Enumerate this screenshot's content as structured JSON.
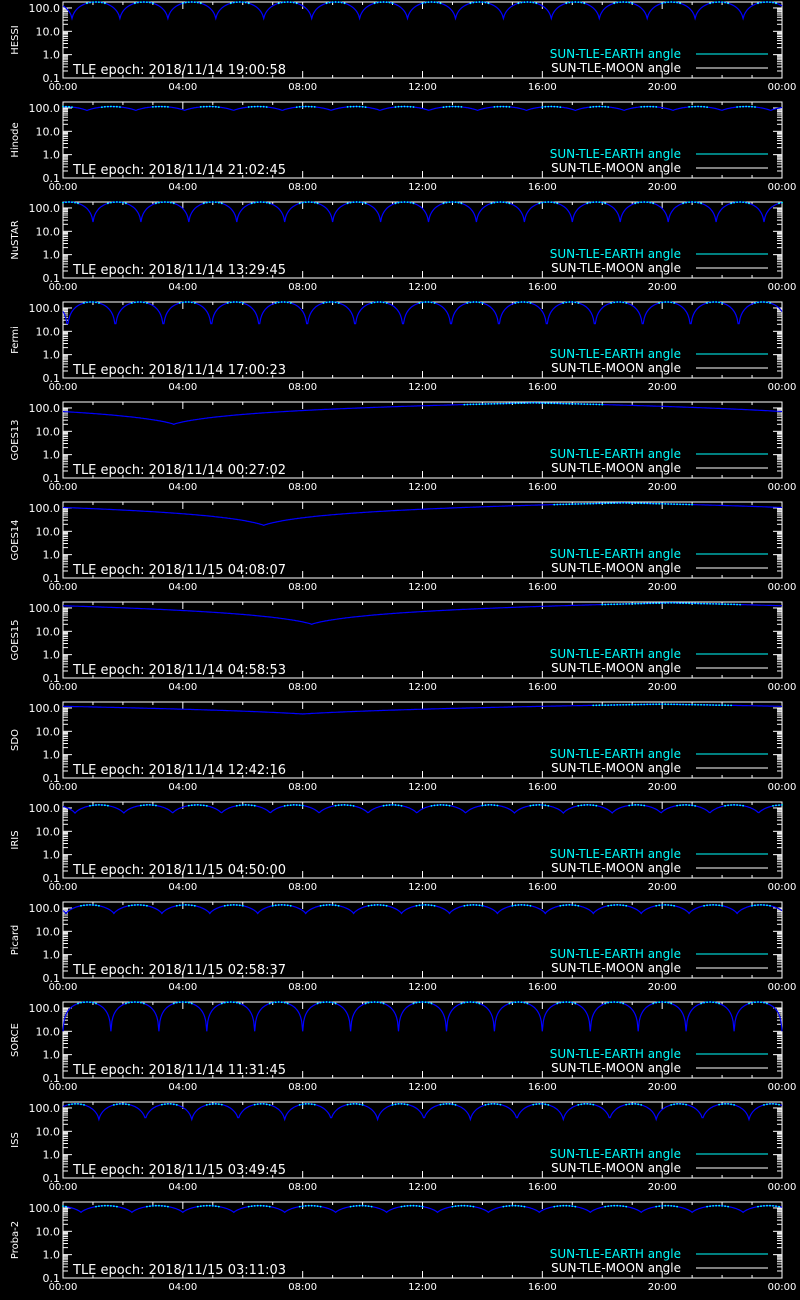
{
  "colors": {
    "background": "#000000",
    "axes": "#ffffff",
    "earth": "#00ffff",
    "moon": "#ffffff",
    "curve": "#0000ff"
  },
  "chart_data": [
    {
      "type": "line",
      "panel": "HESSI",
      "ylabel": "HESSI",
      "epoch_label": "TLE epoch: 2018/11/14 19:00:58",
      "x_ticks": [
        "00:00",
        "04:00",
        "08:00",
        "12:00",
        "16:00",
        "20:00",
        "00:00"
      ],
      "y_ticks": [
        "0.1",
        "1.0",
        "10.0",
        "100.0"
      ],
      "xlim": [
        0,
        24
      ],
      "ylim": [
        0.1,
        180
      ],
      "y_scale": "log",
      "legend": [
        "SUN-TLE-EARTH angle",
        "SUN-TLE-MOON angle"
      ],
      "legend_position": "bottom-right",
      "series": [
        {
          "name": "SUN-TLE-EARTH angle",
          "model": "orbit",
          "period_h": 1.6,
          "phase_h": 0.3,
          "min": 35,
          "max": 180
        }
      ]
    },
    {
      "type": "line",
      "panel": "Hinode",
      "ylabel": "Hinode",
      "epoch_label": "TLE epoch: 2018/11/14 21:02:45",
      "x_ticks": [
        "00:00",
        "04:00",
        "08:00",
        "12:00",
        "16:00",
        "20:00",
        "00:00"
      ],
      "y_ticks": [
        "0.1",
        "1.0",
        "10.0",
        "100.0"
      ],
      "xlim": [
        0,
        24
      ],
      "ylim": [
        0.1,
        180
      ],
      "y_scale": "log",
      "legend": [
        "SUN-TLE-EARTH angle",
        "SUN-TLE-MOON angle"
      ],
      "legend_position": "bottom-right",
      "series": [
        {
          "name": "SUN-TLE-EARTH angle",
          "model": "orbit",
          "period_h": 1.63,
          "phase_h": 0.8,
          "min": 78,
          "max": 115
        }
      ]
    },
    {
      "type": "line",
      "panel": "NuSTAR",
      "ylabel": "NuSTAR",
      "epoch_label": "TLE epoch: 2018/11/14 13:29:45",
      "x_ticks": [
        "00:00",
        "04:00",
        "08:00",
        "12:00",
        "16:00",
        "20:00",
        "00:00"
      ],
      "y_ticks": [
        "0.1",
        "1.0",
        "10.0",
        "100.0"
      ],
      "xlim": [
        0,
        24
      ],
      "ylim": [
        0.1,
        180
      ],
      "y_scale": "log",
      "legend": [
        "SUN-TLE-EARTH angle",
        "SUN-TLE-MOON angle"
      ],
      "legend_position": "bottom-right",
      "series": [
        {
          "name": "SUN-TLE-EARTH angle",
          "model": "orbit",
          "period_h": 1.6,
          "phase_h": 1.0,
          "min": 25,
          "max": 180
        }
      ]
    },
    {
      "type": "line",
      "panel": "Fermi",
      "ylabel": "Fermi",
      "epoch_label": "TLE epoch: 2018/11/14 17:00:23",
      "x_ticks": [
        "00:00",
        "04:00",
        "08:00",
        "12:00",
        "16:00",
        "20:00",
        "00:00"
      ],
      "y_ticks": [
        "0.1",
        "1.0",
        "10.0",
        "100.0"
      ],
      "xlim": [
        0,
        24
      ],
      "ylim": [
        0.1,
        180
      ],
      "y_scale": "log",
      "legend": [
        "SUN-TLE-EARTH angle",
        "SUN-TLE-MOON angle"
      ],
      "legend_position": "bottom-right",
      "series": [
        {
          "name": "SUN-TLE-EARTH angle",
          "model": "orbit",
          "period_h": 1.6,
          "phase_h": 0.15,
          "min": 12,
          "max": 180
        }
      ]
    },
    {
      "type": "line",
      "panel": "GOES13",
      "ylabel": "GOES13",
      "epoch_label": "TLE epoch: 2018/11/14 00:27:02",
      "x_ticks": [
        "00:00",
        "04:00",
        "08:00",
        "12:00",
        "16:00",
        "20:00",
        "00:00"
      ],
      "y_ticks": [
        "0.1",
        "1.0",
        "10.0",
        "100.0"
      ],
      "xlim": [
        0,
        24
      ],
      "ylim": [
        0.1,
        180
      ],
      "y_scale": "log",
      "legend": [
        "SUN-TLE-EARTH angle",
        "SUN-TLE-MOON angle"
      ],
      "legend_position": "bottom-right",
      "series": [
        {
          "name": "SUN-TLE-EARTH angle",
          "model": "geo",
          "t_min": 3.7,
          "min": 20,
          "max": 165
        }
      ]
    },
    {
      "type": "line",
      "panel": "GOES14",
      "ylabel": "GOES14",
      "epoch_label": "TLE epoch: 2018/11/15 04:08:07",
      "x_ticks": [
        "00:00",
        "04:00",
        "08:00",
        "12:00",
        "16:00",
        "20:00",
        "00:00"
      ],
      "y_ticks": [
        "0.1",
        "1.0",
        "10.0",
        "100.0"
      ],
      "xlim": [
        0,
        24
      ],
      "ylim": [
        0.1,
        180
      ],
      "y_scale": "log",
      "legend": [
        "SUN-TLE-EARTH angle",
        "SUN-TLE-MOON angle"
      ],
      "legend_position": "bottom-right",
      "series": [
        {
          "name": "SUN-TLE-EARTH angle",
          "model": "geo",
          "t_min": 6.7,
          "min": 18,
          "max": 165
        }
      ]
    },
    {
      "type": "line",
      "panel": "GOES15",
      "ylabel": "GOES15",
      "epoch_label": "TLE epoch: 2018/11/14 04:58:53",
      "x_ticks": [
        "00:00",
        "04:00",
        "08:00",
        "12:00",
        "16:00",
        "20:00",
        "00:00"
      ],
      "y_ticks": [
        "0.1",
        "1.0",
        "10.0",
        "100.0"
      ],
      "xlim": [
        0,
        24
      ],
      "ylim": [
        0.1,
        180
      ],
      "y_scale": "log",
      "legend": [
        "SUN-TLE-EARTH angle",
        "SUN-TLE-MOON angle"
      ],
      "legend_position": "bottom-right",
      "series": [
        {
          "name": "SUN-TLE-EARTH angle",
          "model": "geo",
          "t_min": 8.3,
          "min": 20,
          "max": 165
        }
      ]
    },
    {
      "type": "line",
      "panel": "SDO",
      "ylabel": "SDO",
      "epoch_label": "TLE epoch: 2018/11/14 12:42:16",
      "x_ticks": [
        "00:00",
        "04:00",
        "08:00",
        "12:00",
        "16:00",
        "20:00",
        "00:00"
      ],
      "y_ticks": [
        "0.1",
        "1.0",
        "10.0",
        "100.0"
      ],
      "xlim": [
        0,
        24
      ],
      "ylim": [
        0.1,
        180
      ],
      "y_scale": "log",
      "legend": [
        "SUN-TLE-EARTH angle",
        "SUN-TLE-MOON angle"
      ],
      "legend_position": "bottom-right",
      "series": [
        {
          "name": "SUN-TLE-EARTH angle",
          "model": "geo",
          "t_min": 8.0,
          "min": 55,
          "max": 145
        }
      ]
    },
    {
      "type": "line",
      "panel": "IRIS",
      "ylabel": "IRIS",
      "epoch_label": "TLE epoch: 2018/11/15 04:50:00",
      "x_ticks": [
        "00:00",
        "04:00",
        "08:00",
        "12:00",
        "16:00",
        "20:00",
        "00:00"
      ],
      "y_ticks": [
        "0.1",
        "1.0",
        "10.0",
        "100.0"
      ],
      "xlim": [
        0,
        24
      ],
      "ylim": [
        0.1,
        180
      ],
      "y_scale": "log",
      "legend": [
        "SUN-TLE-EARTH angle",
        "SUN-TLE-MOON angle"
      ],
      "legend_position": "bottom-right",
      "series": [
        {
          "name": "SUN-TLE-EARTH angle",
          "model": "orbit",
          "period_h": 1.63,
          "phase_h": 0.4,
          "min": 60,
          "max": 135
        }
      ]
    },
    {
      "type": "line",
      "panel": "Picard",
      "ylabel": "Picard",
      "epoch_label": "TLE epoch: 2018/11/15 02:58:37",
      "x_ticks": [
        "00:00",
        "04:00",
        "08:00",
        "12:00",
        "16:00",
        "20:00",
        "00:00"
      ],
      "y_ticks": [
        "0.1",
        "1.0",
        "10.0",
        "100.0"
      ],
      "xlim": [
        0,
        24
      ],
      "ylim": [
        0.1,
        180
      ],
      "y_scale": "log",
      "legend": [
        "SUN-TLE-EARTH angle",
        "SUN-TLE-MOON angle"
      ],
      "legend_position": "bottom-right",
      "series": [
        {
          "name": "SUN-TLE-EARTH angle",
          "model": "orbit",
          "period_h": 1.6,
          "phase_h": 0.1,
          "min": 58,
          "max": 135
        }
      ]
    },
    {
      "type": "line",
      "panel": "SORCE",
      "ylabel": "SORCE",
      "epoch_label": "TLE epoch: 2018/11/14 11:31:45",
      "x_ticks": [
        "00:00",
        "04:00",
        "08:00",
        "12:00",
        "16:00",
        "20:00",
        "00:00"
      ],
      "y_ticks": [
        "0.1",
        "1.0",
        "10.0",
        "100.0"
      ],
      "xlim": [
        0,
        24
      ],
      "ylim": [
        0.1,
        180
      ],
      "y_scale": "log",
      "legend": [
        "SUN-TLE-EARTH angle",
        "SUN-TLE-MOON angle"
      ],
      "legend_position": "bottom-right",
      "series": [
        {
          "name": "SUN-TLE-EARTH angle",
          "model": "orbit",
          "period_h": 1.6,
          "phase_h": 0.0,
          "min": 10,
          "max": 180
        }
      ]
    },
    {
      "type": "line",
      "panel": "ISS",
      "ylabel": "ISS",
      "epoch_label": "TLE epoch: 2018/11/15 03:49:45",
      "x_ticks": [
        "00:00",
        "04:00",
        "08:00",
        "12:00",
        "16:00",
        "20:00",
        "00:00"
      ],
      "y_ticks": [
        "0.1",
        "1.0",
        "10.0",
        "100.0"
      ],
      "xlim": [
        0,
        24
      ],
      "ylim": [
        0.1,
        180
      ],
      "y_scale": "log",
      "legend": [
        "SUN-TLE-EARTH angle",
        "SUN-TLE-MOON angle"
      ],
      "legend_position": "bottom-right",
      "series": [
        {
          "name": "SUN-TLE-EARTH angle",
          "model": "orbit",
          "period_h": 1.55,
          "phase_h": 1.2,
          "min": 32,
          "max": 150
        }
      ]
    },
    {
      "type": "line",
      "panel": "Proba-2",
      "ylabel": "Proba-2",
      "epoch_label": "TLE epoch: 2018/11/15 03:11:03",
      "x_ticks": [
        "00:00",
        "04:00",
        "08:00",
        "12:00",
        "16:00",
        "20:00",
        "00:00"
      ],
      "y_ticks": [
        "0.1",
        "1.0",
        "10.0",
        "100.0"
      ],
      "xlim": [
        0,
        24
      ],
      "ylim": [
        0.1,
        180
      ],
      "y_scale": "log",
      "legend": [
        "SUN-TLE-EARTH angle",
        "SUN-TLE-MOON angle"
      ],
      "legend_position": "bottom-right",
      "series": [
        {
          "name": "SUN-TLE-EARTH angle",
          "model": "orbit",
          "period_h": 1.7,
          "phase_h": 0.6,
          "min": 65,
          "max": 125
        }
      ]
    }
  ]
}
